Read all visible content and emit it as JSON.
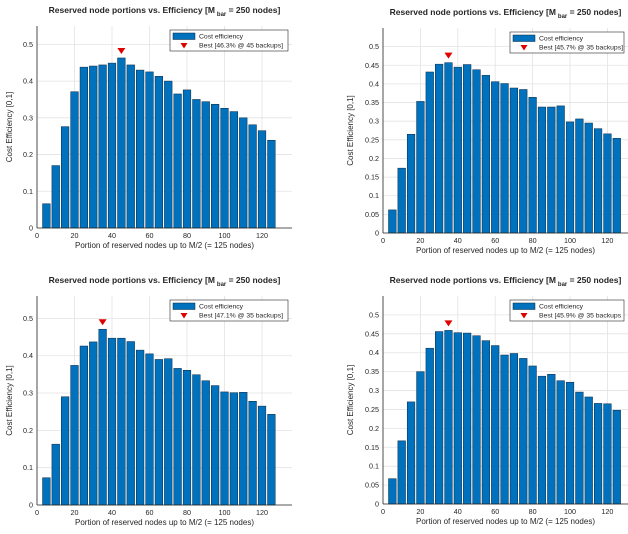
{
  "chart_data": [
    {
      "type": "bar",
      "title_main": "Reserved node portions vs. Efficiency [M",
      "title_sub": "bar",
      "title_end": " = 250 nodes]",
      "xlabel": "Portion of reserved nodes up to M/2 (= 125 nodes)",
      "ylabel": "Cost Efficiency [0,1]",
      "xlim": [
        0,
        136
      ],
      "ylim": [
        0,
        0.55
      ],
      "xticks": [
        0,
        20,
        40,
        60,
        80,
        100,
        120
      ],
      "yticks": [
        0,
        0.1,
        0.2,
        0.3,
        0.4,
        0.5
      ],
      "ytick_labels": [
        "0",
        "0.1",
        "0.2",
        "0.3",
        "0.4",
        "0.5"
      ],
      "x": [
        5,
        10,
        15,
        20,
        25,
        30,
        35,
        40,
        45,
        50,
        55,
        60,
        65,
        70,
        75,
        80,
        85,
        90,
        95,
        100,
        105,
        110,
        115,
        120,
        125
      ],
      "values": [
        0.066,
        0.17,
        0.276,
        0.371,
        0.438,
        0.441,
        0.444,
        0.449,
        0.463,
        0.444,
        0.43,
        0.425,
        0.413,
        0.4,
        0.365,
        0.376,
        0.35,
        0.344,
        0.337,
        0.326,
        0.317,
        0.3,
        0.281,
        0.265,
        0.239
      ],
      "best": {
        "x": 45,
        "y": 0.463
      },
      "legend": {
        "series": "Cost efficiency",
        "best": "Best [46.3% @ 45 backups]",
        "position": "top-right"
      },
      "grid": true
    },
    {
      "type": "bar",
      "title_main": "Reserved node portions vs. Efficiency [M",
      "title_sub": "bar",
      "title_end": " = 250 nodes]",
      "xlabel": "Portion of reserved nodes up to M/2 (= 125 nodes)",
      "ylabel": "Cost Efficiency [0,1]",
      "xlim": [
        0,
        131
      ],
      "ylim": [
        0,
        0.55
      ],
      "xticks": [
        0,
        20,
        40,
        60,
        80,
        100,
        120
      ],
      "yticks": [
        0,
        0.05,
        0.1,
        0.15,
        0.2,
        0.25,
        0.3,
        0.35,
        0.4,
        0.45,
        0.5
      ],
      "ytick_labels": [
        "0",
        "0.05",
        "0.1",
        "0.15",
        "0.2",
        "0.25",
        "0.3",
        "0.35",
        "0.4",
        "0.45",
        "0.5"
      ],
      "x": [
        5,
        10,
        15,
        20,
        25,
        30,
        35,
        40,
        45,
        50,
        55,
        60,
        65,
        70,
        75,
        80,
        85,
        90,
        95,
        100,
        105,
        110,
        115,
        120,
        125
      ],
      "values": [
        0.062,
        0.174,
        0.265,
        0.353,
        0.432,
        0.453,
        0.457,
        0.445,
        0.452,
        0.438,
        0.423,
        0.406,
        0.401,
        0.389,
        0.385,
        0.364,
        0.338,
        0.338,
        0.341,
        0.298,
        0.306,
        0.295,
        0.28,
        0.266,
        0.254
      ],
      "best": {
        "x": 35,
        "y": 0.457
      },
      "legend": {
        "series": "Cost efficiency",
        "best": "Best [45.7% @ 35 backups]",
        "position": "top-right"
      },
      "grid": true
    },
    {
      "type": "bar",
      "title_main": "Reserved node portions vs. Efficiency [M",
      "title_sub": "bar",
      "title_end": " = 250 nodes]",
      "xlabel": "Portion of reserved nodes up to M/2 (= 125 nodes)",
      "ylabel": "Cost Efficiency [0,1]",
      "xlim": [
        0,
        136
      ],
      "ylim": [
        0,
        0.56
      ],
      "xticks": [
        0,
        20,
        40,
        60,
        80,
        100,
        120
      ],
      "yticks": [
        0,
        0.1,
        0.2,
        0.3,
        0.4,
        0.5
      ],
      "ytick_labels": [
        "0",
        "0.1",
        "0.2",
        "0.3",
        "0.4",
        "0.5"
      ],
      "x": [
        5,
        10,
        15,
        20,
        25,
        30,
        35,
        40,
        45,
        50,
        55,
        60,
        65,
        70,
        75,
        80,
        85,
        90,
        95,
        100,
        105,
        110,
        115,
        120,
        125
      ],
      "values": [
        0.073,
        0.163,
        0.29,
        0.374,
        0.426,
        0.437,
        0.471,
        0.447,
        0.447,
        0.438,
        0.415,
        0.405,
        0.39,
        0.392,
        0.366,
        0.361,
        0.349,
        0.333,
        0.32,
        0.303,
        0.301,
        0.302,
        0.278,
        0.265,
        0.243
      ],
      "best": {
        "x": 35,
        "y": 0.471
      },
      "legend": {
        "series": "Cost efficiency",
        "best": "Best [47.1% @ 35 backups]",
        "position": "top-right"
      },
      "grid": true
    },
    {
      "type": "bar",
      "title_main": "Reserved node portions vs. Efficiency [M",
      "title_sub": "bar",
      "title_end": " = 250 nodes]",
      "xlabel": "Portion of reserved nodes up to M/2 (= 125 nodes)",
      "ylabel": "Cost Efficiency [0,1]",
      "xlim": [
        0,
        131
      ],
      "ylim": [
        0,
        0.55
      ],
      "xticks": [
        0,
        20,
        40,
        60,
        80,
        100,
        120
      ],
      "yticks": [
        0,
        0.05,
        0.1,
        0.15,
        0.2,
        0.25,
        0.3,
        0.35,
        0.4,
        0.45,
        0.5
      ],
      "ytick_labels": [
        "0",
        "0.05",
        "0.1",
        "0.15",
        "0.2",
        "0.25",
        "0.3",
        "0.35",
        "0.4",
        "0.45",
        "0.5"
      ],
      "x": [
        5,
        10,
        15,
        20,
        25,
        30,
        35,
        40,
        45,
        50,
        55,
        60,
        65,
        70,
        75,
        80,
        85,
        90,
        95,
        100,
        105,
        110,
        115,
        120,
        125
      ],
      "values": [
        0.067,
        0.167,
        0.27,
        0.35,
        0.412,
        0.456,
        0.459,
        0.453,
        0.452,
        0.445,
        0.432,
        0.419,
        0.394,
        0.398,
        0.385,
        0.365,
        0.338,
        0.343,
        0.326,
        0.322,
        0.296,
        0.283,
        0.266,
        0.265,
        0.248
      ],
      "best": {
        "x": 35,
        "y": 0.459
      },
      "legend": {
        "series": "Cost efficiency",
        "best": "Best [45.9% @ 35 backups",
        "position": "top-right"
      },
      "grid": true
    }
  ],
  "colors": {
    "bar": "#0072BD",
    "bar_edge": "#0b2740",
    "marker": "#E00000",
    "grid": "#e3e3e3",
    "axis": "#262626"
  }
}
